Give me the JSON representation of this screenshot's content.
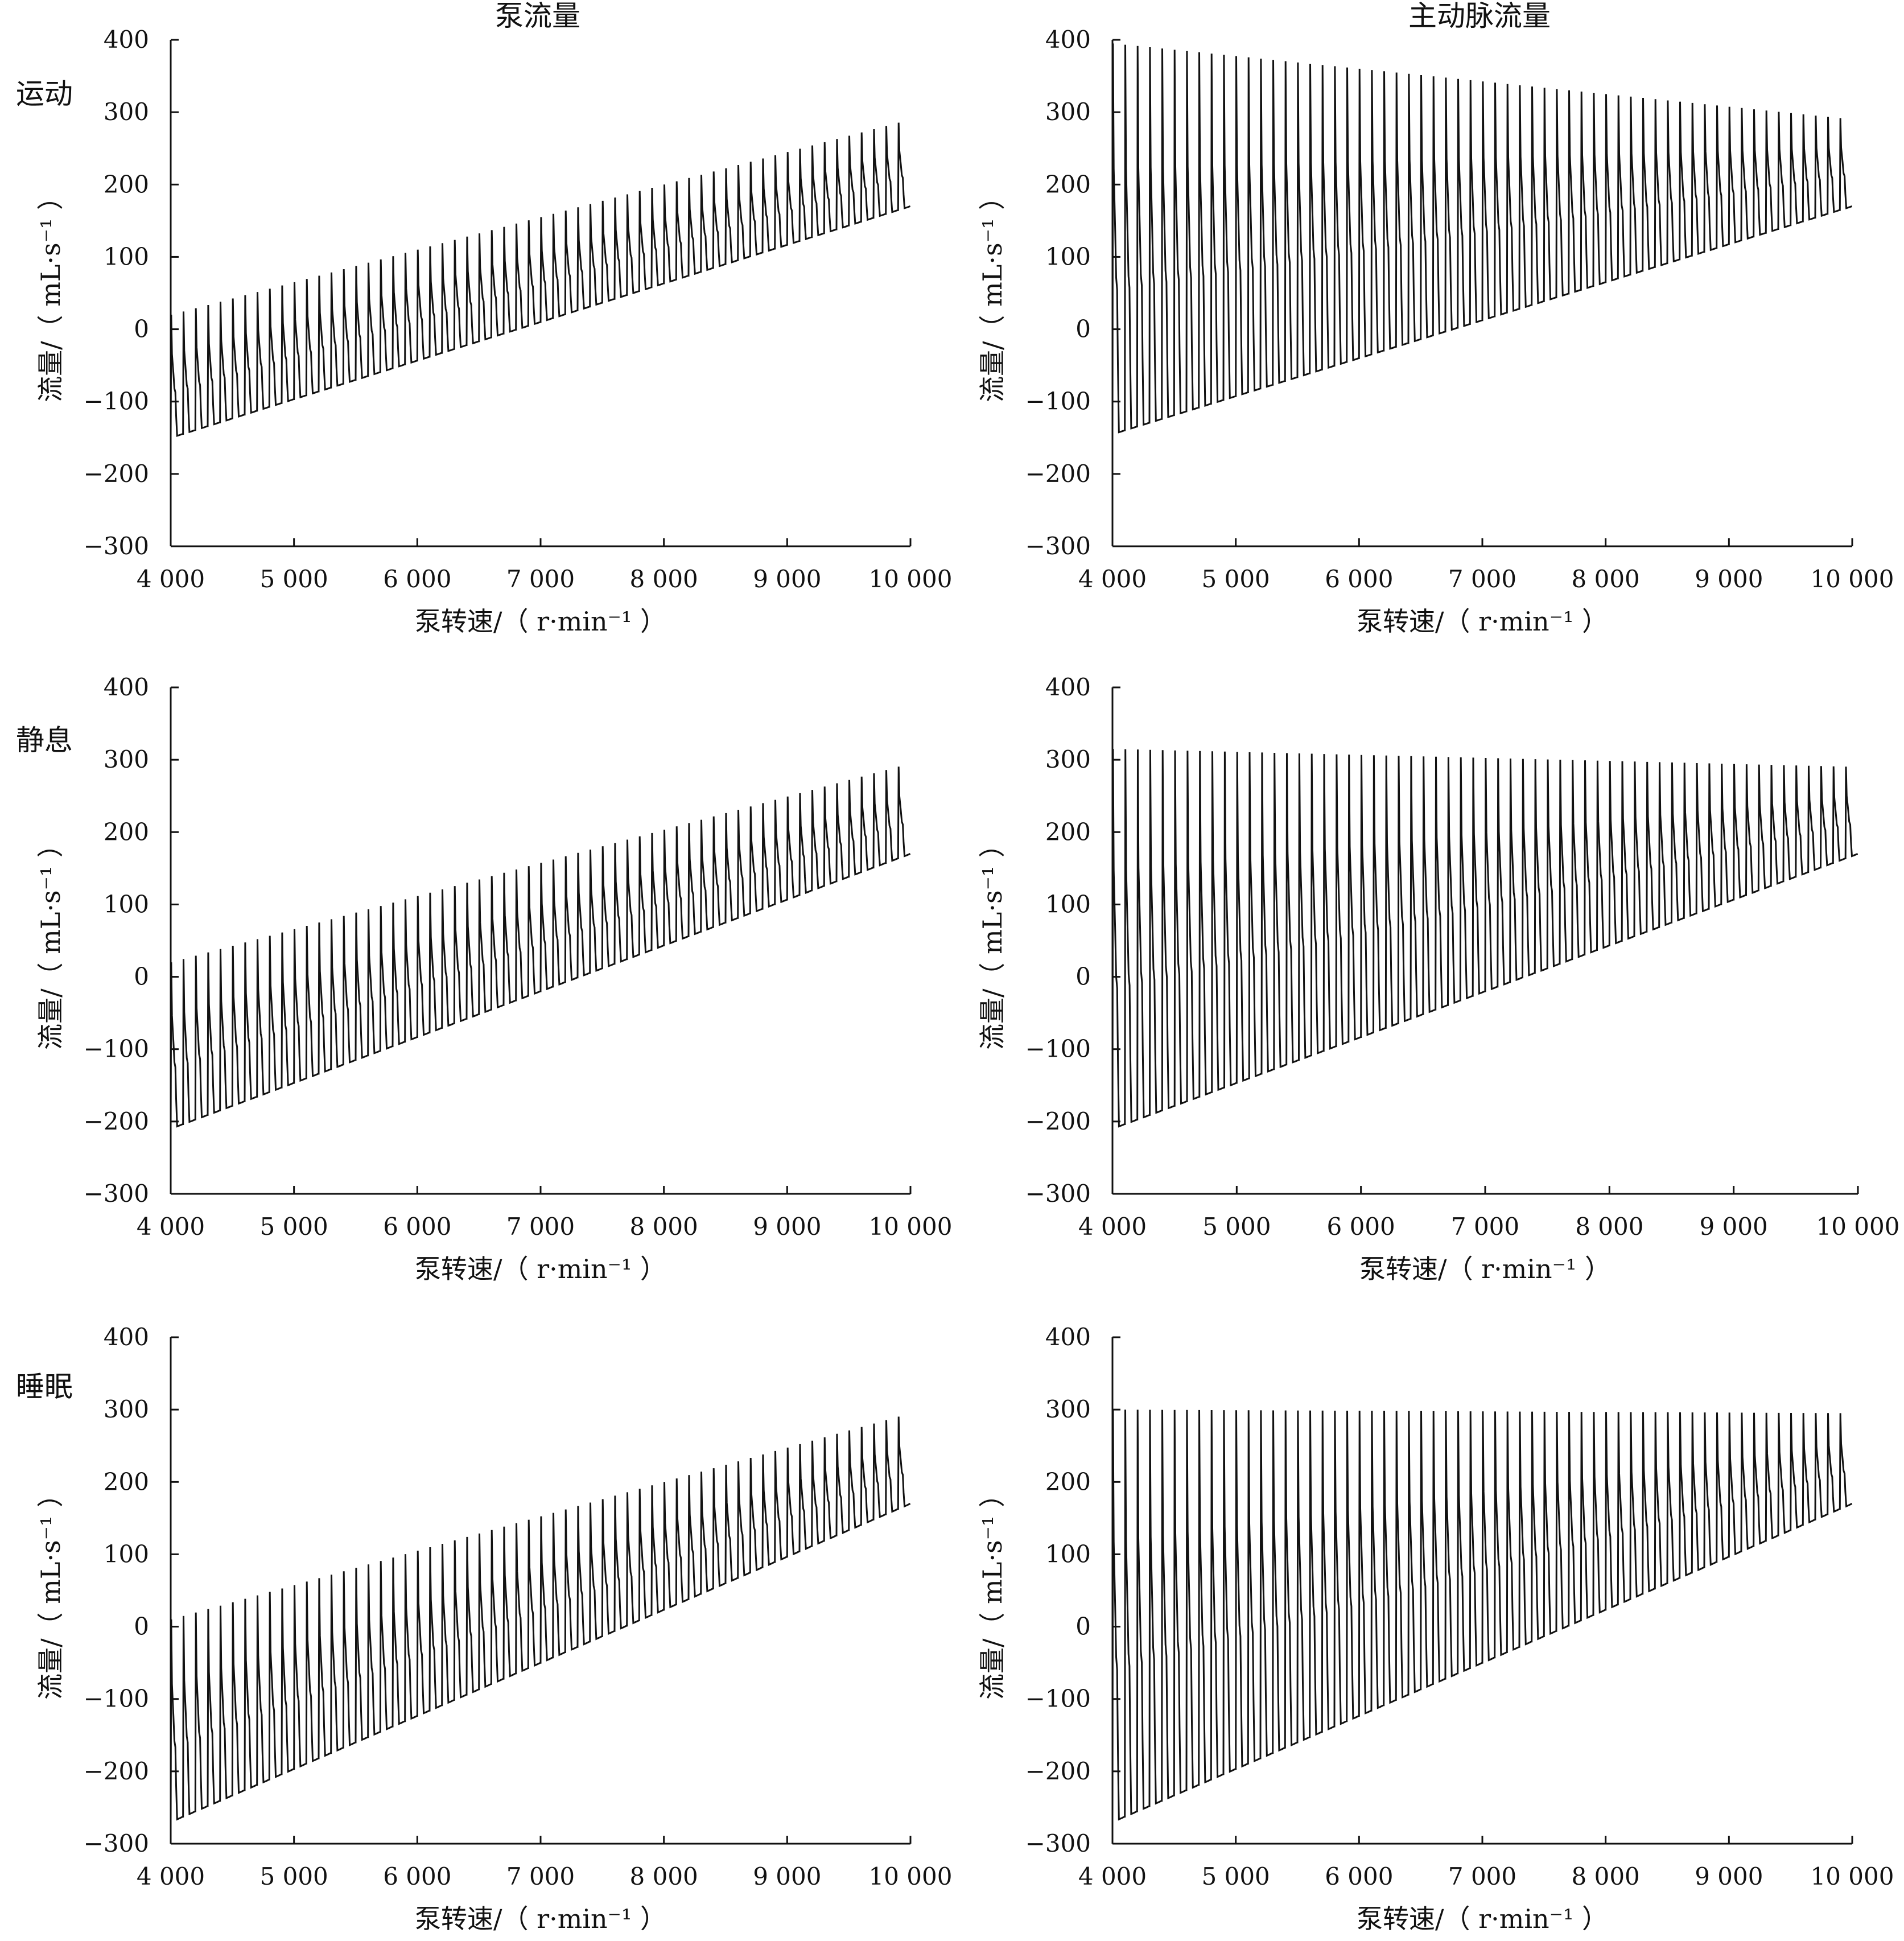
{
  "column_titles": [
    "泵流量",
    "主动脉流量"
  ],
  "row_labels": [
    "运动",
    "静息",
    "睡眠"
  ],
  "x_axis_label": "泵转速/（ r·min⁻¹ ）",
  "y_axis_label": "流量/（ mL·s⁻¹ ）",
  "x_ticks": [
    4000,
    5000,
    6000,
    7000,
    8000,
    9000,
    10000
  ],
  "x_tick_labels": [
    "4 000",
    "5 000",
    "6 000",
    "7 000",
    "8 000",
    "9 000",
    "10 000"
  ],
  "y_ticks": [
    -300,
    -200,
    -100,
    0,
    100,
    200,
    300,
    400
  ],
  "y_tick_labels": [
    "−300",
    "−200",
    "−100",
    "0",
    "100",
    "200",
    "300",
    "400"
  ],
  "line_color": "#111111",
  "chart_data": [
    {
      "type": "line",
      "row": "运动",
      "column": "泵流量",
      "xlim": [
        4000,
        10000
      ],
      "ylim": [
        -300,
        400
      ],
      "cycles": 60,
      "series": [
        {
          "x": [
            4000,
            10000
          ],
          "peak": [
            20,
            290
          ],
          "trough": [
            -150,
            170
          ]
        }
      ]
    },
    {
      "type": "line",
      "row": "运动",
      "column": "主动脉流量",
      "xlim": [
        4000,
        10000
      ],
      "ylim": [
        -300,
        400
      ],
      "cycles": 60,
      "series": [
        {
          "x": [
            4000,
            10000
          ],
          "peak": [
            395,
            290
          ],
          "trough": [
            -145,
            170
          ]
        }
      ]
    },
    {
      "type": "line",
      "row": "静息",
      "column": "泵流量",
      "xlim": [
        4000,
        10000
      ],
      "ylim": [
        -300,
        400
      ],
      "cycles": 60,
      "series": [
        {
          "x": [
            4000,
            10000
          ],
          "peak": [
            20,
            295
          ],
          "trough": [
            -210,
            170
          ]
        }
      ]
    },
    {
      "type": "line",
      "row": "静息",
      "column": "主动脉流量",
      "xlim": [
        4000,
        10000
      ],
      "ylim": [
        -300,
        400
      ],
      "cycles": 60,
      "series": [
        {
          "x": [
            4000,
            10000
          ],
          "peak": [
            315,
            290
          ],
          "trough": [
            -210,
            170
          ]
        }
      ]
    },
    {
      "type": "line",
      "row": "睡眠",
      "column": "泵流量",
      "xlim": [
        4000,
        10000
      ],
      "ylim": [
        -300,
        400
      ],
      "cycles": 60,
      "series": [
        {
          "x": [
            4000,
            10000
          ],
          "peak": [
            10,
            295
          ],
          "trough": [
            -270,
            170
          ]
        }
      ]
    },
    {
      "type": "line",
      "row": "睡眠",
      "column": "主动脉流量",
      "xlim": [
        4000,
        10000
      ],
      "ylim": [
        -300,
        400
      ],
      "cycles": 60,
      "series": [
        {
          "x": [
            4000,
            10000
          ],
          "peak": [
            300,
            295
          ],
          "trough": [
            -270,
            170
          ]
        }
      ]
    }
  ]
}
